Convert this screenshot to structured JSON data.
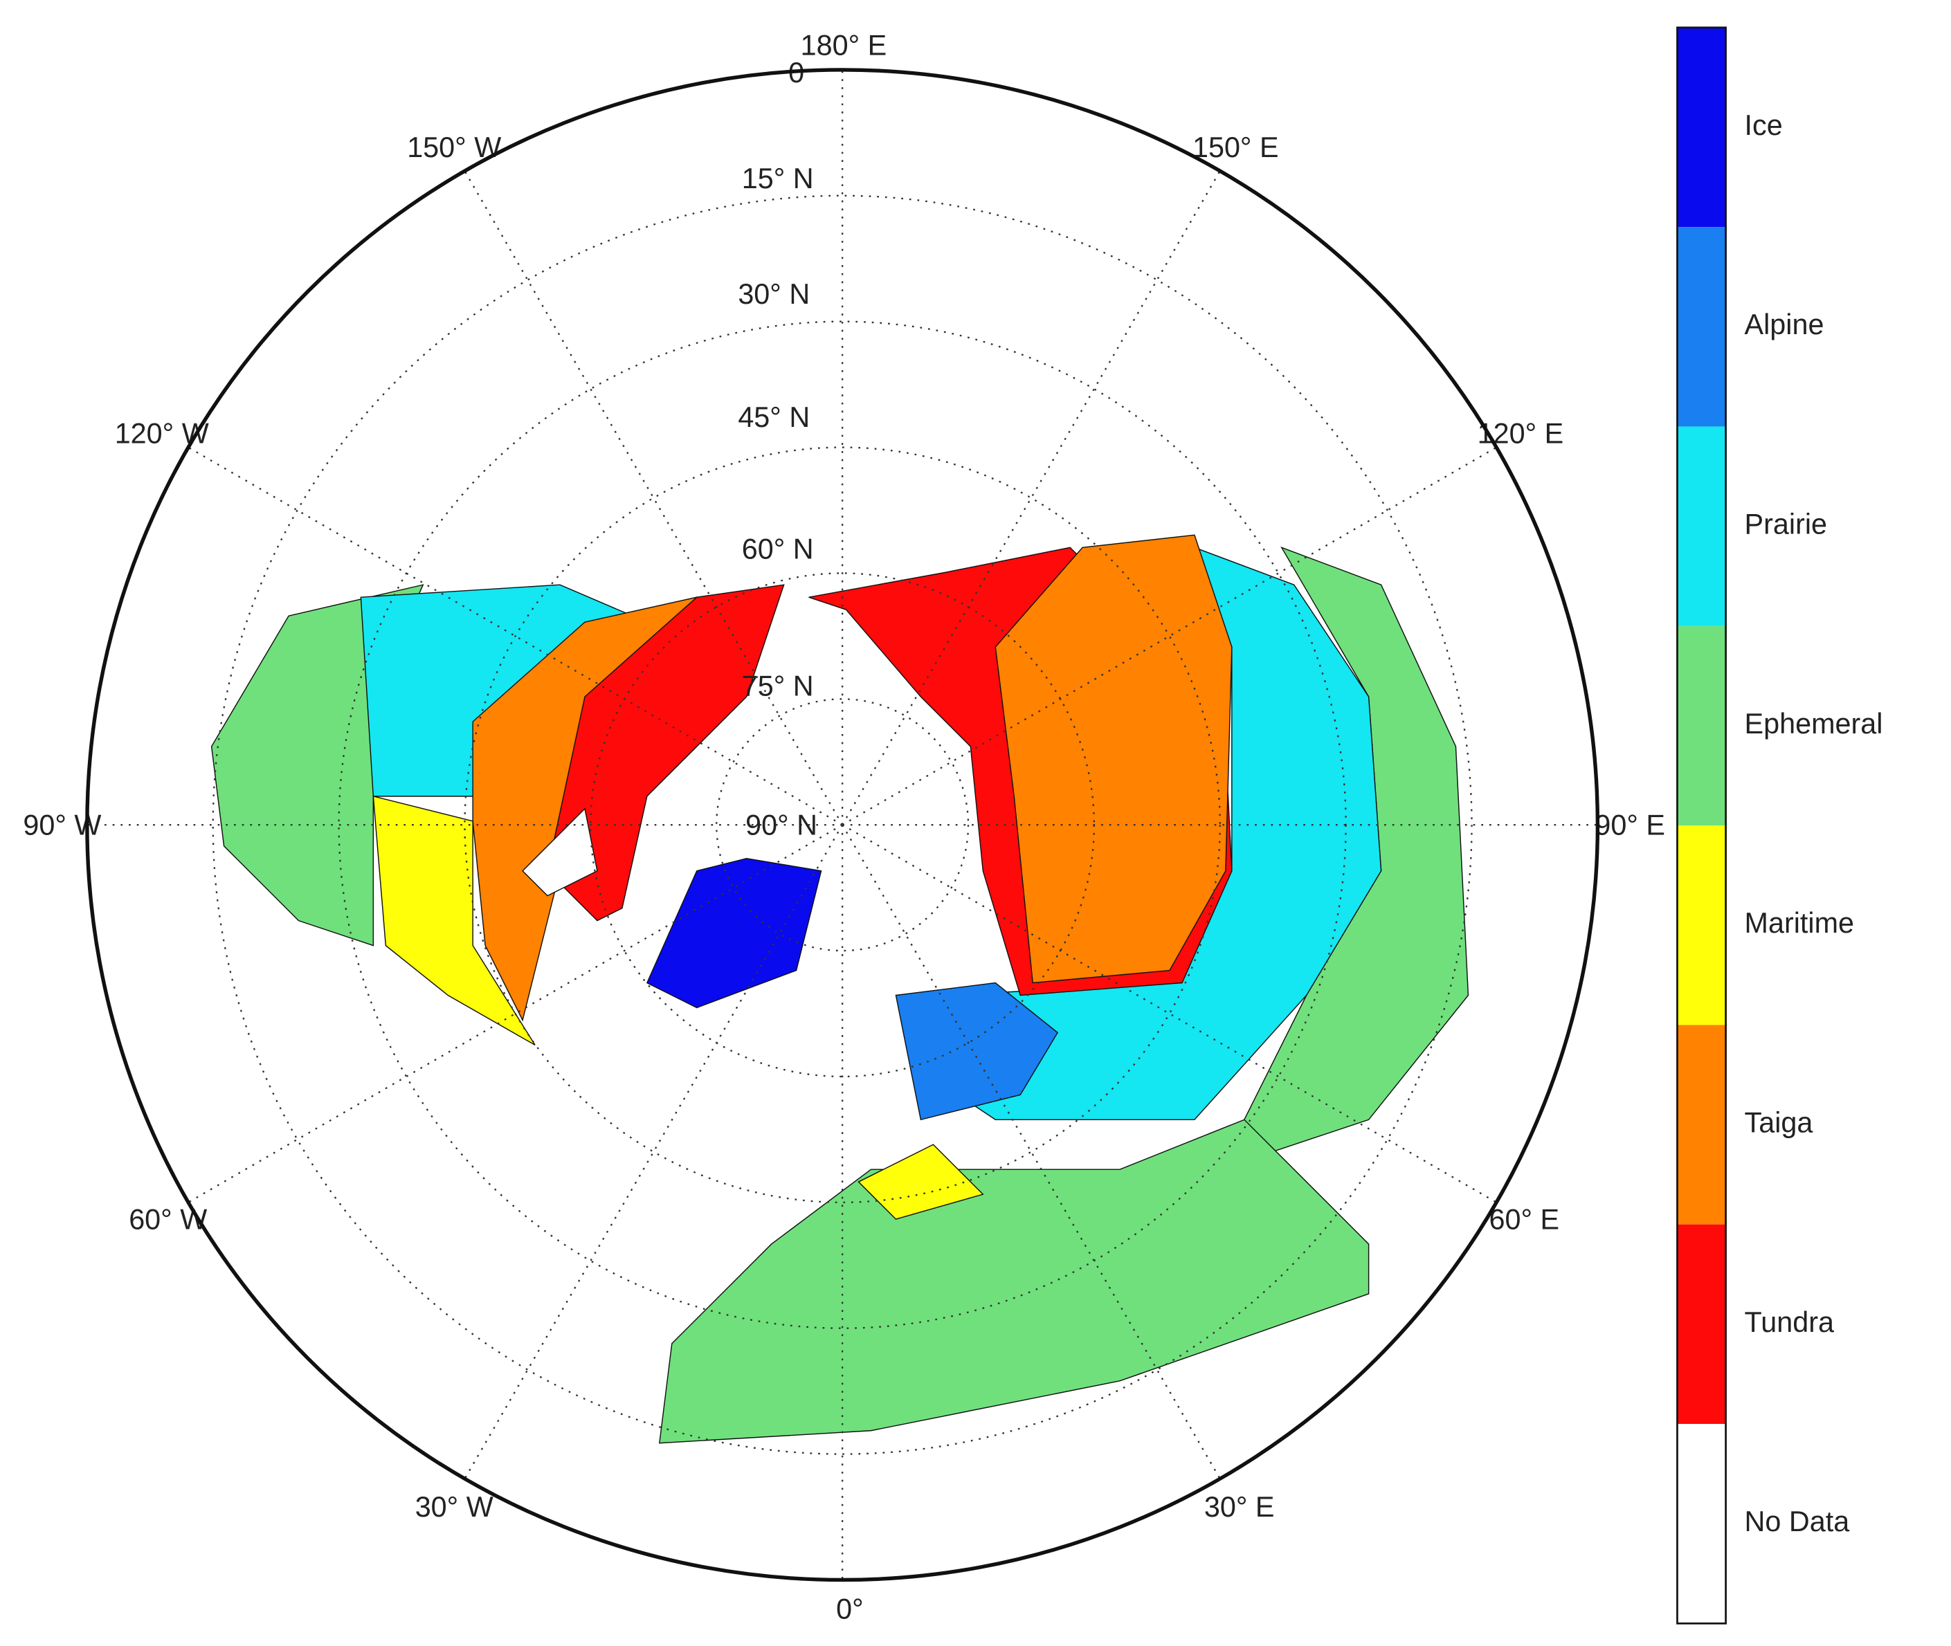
{
  "map": {
    "longitude_labels": [
      "180° E",
      "150° E",
      "120° E",
      "90° E",
      "60° E",
      "30° E",
      "0°",
      "30° W",
      "60° W",
      "90° W",
      "120° W",
      "150° W"
    ],
    "latitude_labels": [
      "0",
      "15° N",
      "30° N",
      "45° N",
      "60° N",
      "75° N",
      "90° N"
    ]
  },
  "legend": {
    "classes": [
      {
        "label": "Ice",
        "color": "#0a0aee"
      },
      {
        "label": "Alpine",
        "color": "#1a7ff0"
      },
      {
        "label": "Prairie",
        "color": "#14e6f2"
      },
      {
        "label": "Ephemeral",
        "color": "#70e07c"
      },
      {
        "label": "Maritime",
        "color": "#ffff0a"
      },
      {
        "label": "Taiga",
        "color": "#ff8200"
      },
      {
        "label": "Tundra",
        "color": "#ff0a0a"
      },
      {
        "label": "No Data",
        "color": "#ffffff"
      }
    ]
  }
}
